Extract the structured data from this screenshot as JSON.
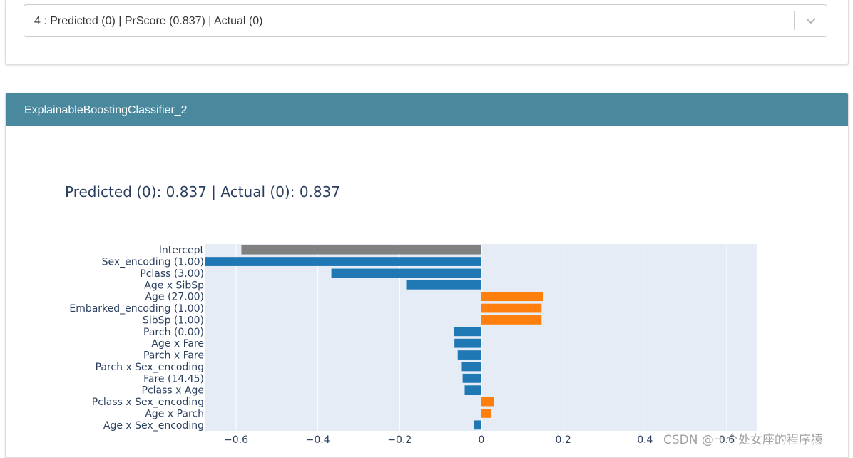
{
  "selector": {
    "value": "4 : Predicted (0) | PrScore (0.837) | Actual (0)"
  },
  "panel": {
    "title": "ExplainableBoostingClassifier_2"
  },
  "chart_data": {
    "type": "bar",
    "orientation": "horizontal",
    "title": "Predicted (0): 0.837 | Actual (0): 0.837",
    "xlabel": "",
    "ylabel": "",
    "xlim": [
      -0.675,
      0.675
    ],
    "x_ticks": [
      -0.6,
      -0.4,
      -0.2,
      0,
      0.2,
      0.4,
      0.6
    ],
    "x_tick_labels": [
      "−0.6",
      "−0.4",
      "−0.2",
      "0",
      "0.2",
      "0.4",
      "0.6"
    ],
    "grid": true,
    "colors": {
      "intercept": "#808080",
      "negative": "#1f77b4",
      "positive": "#ff7f0e",
      "plot_background": "#e5ecf6",
      "grid": "#ffffff",
      "text": "#2a3f5f"
    },
    "categories": [
      "Intercept",
      "Sex_encoding (1.00)",
      "Pclass (3.00)",
      "Age x SibSp",
      "Age (27.00)",
      "Embarked_encoding (1.00)",
      "SibSp (1.00)",
      "Parch (0.00)",
      "Age x Fare",
      "Parch x Fare",
      "Parch x Sex_encoding",
      "Fare (14.45)",
      "Pclass x Age",
      "Pclass x Sex_encoding",
      "Age x Parch",
      "Age x Sex_encoding"
    ],
    "values": [
      -0.587,
      -0.675,
      -0.367,
      -0.184,
      0.151,
      0.147,
      0.147,
      -0.067,
      -0.066,
      -0.058,
      -0.048,
      -0.046,
      -0.041,
      0.03,
      0.024,
      -0.019
    ],
    "bar_kinds": [
      "intercept",
      "negative",
      "negative",
      "negative",
      "positive",
      "positive",
      "positive",
      "negative",
      "negative",
      "negative",
      "negative",
      "negative",
      "negative",
      "positive",
      "positive",
      "negative"
    ]
  },
  "watermark": {
    "text": "CSDN @一个处女座的程序猿"
  }
}
